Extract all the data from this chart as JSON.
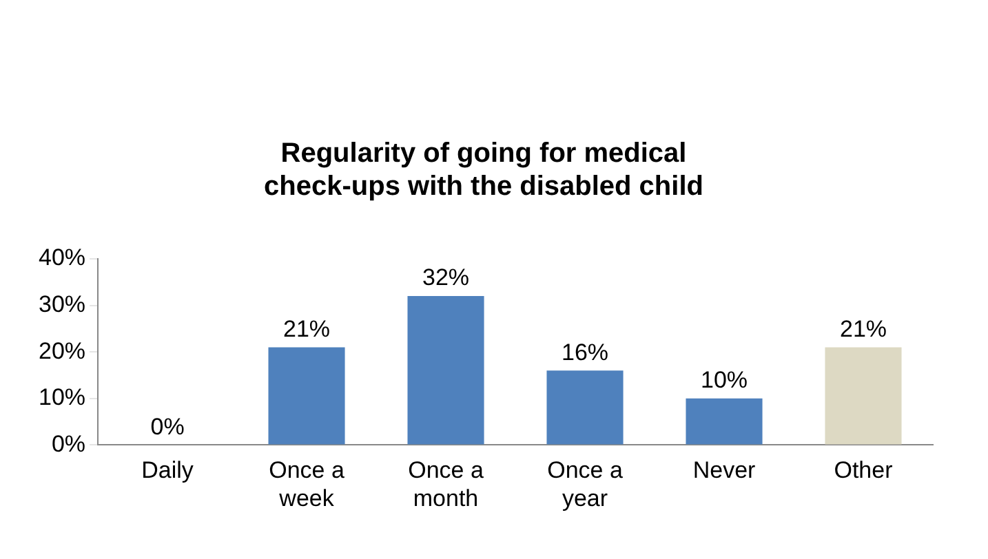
{
  "chart_data": {
    "type": "bar",
    "title": "Regularity of going for medical check-ups with the disabled child",
    "categories": [
      "Daily",
      "Once a week",
      "Once a month",
      "Once a year",
      "Never",
      "Other"
    ],
    "values": [
      0,
      21,
      32,
      16,
      10,
      21
    ],
    "colors": [
      "#4f81bd",
      "#4f81bd",
      "#4f81bd",
      "#4f81bd",
      "#4f81bd",
      "#ddd9c3"
    ],
    "value_labels": [
      "0%",
      "21%",
      "32%",
      "16%",
      "10%",
      "21%"
    ],
    "ylim": [
      0,
      40
    ],
    "yticks": [
      {
        "value": 0,
        "label": "0%"
      },
      {
        "value": 10,
        "label": "10%"
      },
      {
        "value": 20,
        "label": "20%"
      },
      {
        "value": 30,
        "label": "30%"
      },
      {
        "value": 40,
        "label": "40%"
      }
    ],
    "grid": false,
    "legend": false
  }
}
